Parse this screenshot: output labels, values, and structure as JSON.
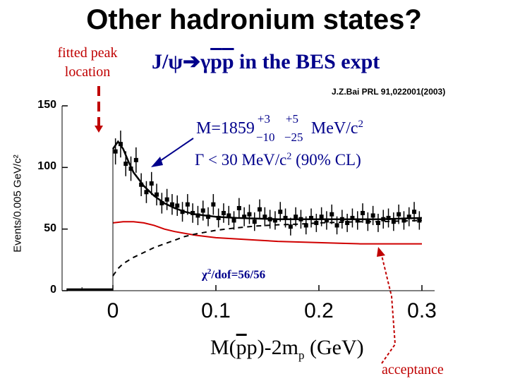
{
  "slide": {
    "title": "Other hadronium states?",
    "fitted_annotation": "fitted peak location",
    "subtitle_prefix": "J/ψ",
    "subtitle_arrow": "➔",
    "subtitle_gamma": "γ",
    "subtitle_p": "p",
    "subtitle_pbar": "p",
    "subtitle_suffix": " in the BES expt",
    "reference": "J.Z.Bai PRL 91,022001(2003)",
    "mass_value": "M=1859",
    "mass_err_up_stat": "+3",
    "mass_err_up_sys": "+5",
    "mass_err_dn_stat": "−10",
    "mass_err_dn_sys": "−25",
    "mass_unit": "MeV/c",
    "mass_unit_exp": "2",
    "width_text": "Γ < 30 MeV/c",
    "width_exp": "2",
    "width_cl": " (90% CL)",
    "chi2_symbol": "χ",
    "chi2_exp": "2",
    "chi2_text": "/dof=56/56",
    "xlabel_a": "M(",
    "xlabel_pbar": "p",
    "xlabel_b": "p)-2m",
    "xlabel_sub": "p",
    "xlabel_c": " (GeV)",
    "acceptance_label": "acceptance",
    "ylabel": "Events/0.005 GeV/c²"
  },
  "colors": {
    "annotation_red": "#c00000",
    "text_blue": "#00008b",
    "acceptance_curve": "#d00000",
    "data": "#000000"
  },
  "chart_data": {
    "type": "scatter",
    "xlim": [
      -0.05,
      0.31
    ],
    "ylim": [
      0,
      150
    ],
    "x_ticks": [
      0,
      0.1,
      0.2,
      0.3
    ],
    "x_tick_labels": [
      "0",
      "0.1",
      "0.2",
      "0.3"
    ],
    "y_ticks": [
      0,
      50,
      100,
      150
    ],
    "y_tick_labels": [
      "0",
      "50",
      "100",
      "150"
    ],
    "series": [
      {
        "name": "data",
        "x": [
          0.0025,
          0.0075,
          0.0125,
          0.0175,
          0.0225,
          0.0275,
          0.0325,
          0.0375,
          0.0425,
          0.0475,
          0.0525,
          0.0575,
          0.0625,
          0.0675,
          0.0725,
          0.0775,
          0.0825,
          0.0875,
          0.0925,
          0.0975,
          0.1025,
          0.1075,
          0.1125,
          0.1175,
          0.1225,
          0.1275,
          0.1325,
          0.1375,
          0.1425,
          0.1475,
          0.1525,
          0.1575,
          0.1625,
          0.1675,
          0.1725,
          0.1775,
          0.1825,
          0.1875,
          0.1925,
          0.1975,
          0.2025,
          0.2075,
          0.2125,
          0.2175,
          0.2225,
          0.2275,
          0.2325,
          0.2375,
          0.2425,
          0.2475,
          0.2525,
          0.2575,
          0.2625,
          0.2675,
          0.2725,
          0.2775,
          0.2825,
          0.2875,
          0.2925,
          0.2975
        ],
        "values": [
          113,
          119,
          103,
          99,
          106,
          86,
          80,
          87,
          78,
          71,
          74,
          70,
          69,
          64,
          70,
          63,
          61,
          65,
          60,
          70,
          59,
          63,
          61,
          57,
          67,
          60,
          62,
          56,
          66,
          60,
          58,
          57,
          64,
          59,
          52,
          60,
          58,
          53,
          59,
          55,
          60,
          57,
          62,
          53,
          58,
          55,
          59,
          57,
          63,
          56,
          61,
          55,
          58,
          59,
          56,
          62,
          57,
          60,
          64,
          57
        ],
        "errors": [
          10.6,
          10.9,
          10.1,
          9.9,
          10.3,
          9.3,
          8.9,
          9.3,
          8.8,
          8.4,
          8.6,
          8.4,
          8.3,
          8.0,
          8.4,
          7.9,
          7.8,
          8.1,
          7.7,
          8.4,
          7.7,
          7.9,
          7.8,
          7.5,
          8.2,
          7.7,
          7.9,
          7.5,
          8.1,
          7.7,
          7.6,
          7.5,
          8.0,
          7.7,
          7.2,
          7.7,
          7.6,
          7.3,
          7.7,
          7.4,
          7.7,
          7.5,
          7.9,
          7.3,
          7.6,
          7.4,
          7.7,
          7.5,
          7.9,
          7.5,
          7.8,
          7.4,
          7.6,
          7.7,
          7.5,
          7.9,
          7.5,
          7.7,
          8.0,
          7.5
        ]
      },
      {
        "name": "fit",
        "x": [
          0,
          0.005,
          0.01,
          0.015,
          0.02,
          0.03,
          0.04,
          0.05,
          0.06,
          0.07,
          0.08,
          0.09,
          0.1,
          0.12,
          0.14,
          0.16,
          0.18,
          0.2,
          0.22,
          0.24,
          0.26,
          0.28,
          0.3
        ],
        "values": [
          115,
          121,
          115,
          105,
          96,
          85,
          77,
          71,
          67,
          64,
          62,
          61,
          60,
          59,
          58.5,
          58,
          58,
          58,
          58,
          58,
          58,
          58.5,
          59
        ]
      },
      {
        "name": "acceptance",
        "x": [
          0,
          0.01,
          0.02,
          0.03,
          0.04,
          0.05,
          0.06,
          0.08,
          0.1,
          0.12,
          0.14,
          0.16,
          0.18,
          0.2,
          0.22,
          0.24,
          0.26,
          0.28,
          0.3
        ],
        "values": [
          55,
          56,
          56,
          55,
          53,
          50,
          48,
          45,
          43,
          42,
          41,
          40,
          39.5,
          39,
          38.5,
          38,
          38,
          38,
          38
        ]
      },
      {
        "name": "phase_space",
        "x": [
          0,
          0.005,
          0.01,
          0.02,
          0.03,
          0.04,
          0.05,
          0.06,
          0.07,
          0.08,
          0.1,
          0.12,
          0.14,
          0.16,
          0.18,
          0.2,
          0.22,
          0.24,
          0.26,
          0.28,
          0.3
        ],
        "values": [
          12,
          18,
          22,
          27,
          31,
          35,
          38,
          41,
          44,
          46,
          49,
          51,
          52.5,
          53.5,
          54,
          55,
          55.5,
          56,
          56,
          56.5,
          57
        ]
      },
      {
        "name": "below_threshold",
        "x": [
          -0.045,
          -0.04,
          -0.035,
          -0.03,
          -0.025,
          -0.02,
          -0.015,
          -0.01,
          -0.005,
          0
        ],
        "values": [
          1,
          1,
          1,
          1,
          1,
          1,
          1,
          1,
          1,
          1
        ]
      }
    ],
    "annotations": [
      "fitted peak location",
      "acceptance"
    ]
  }
}
